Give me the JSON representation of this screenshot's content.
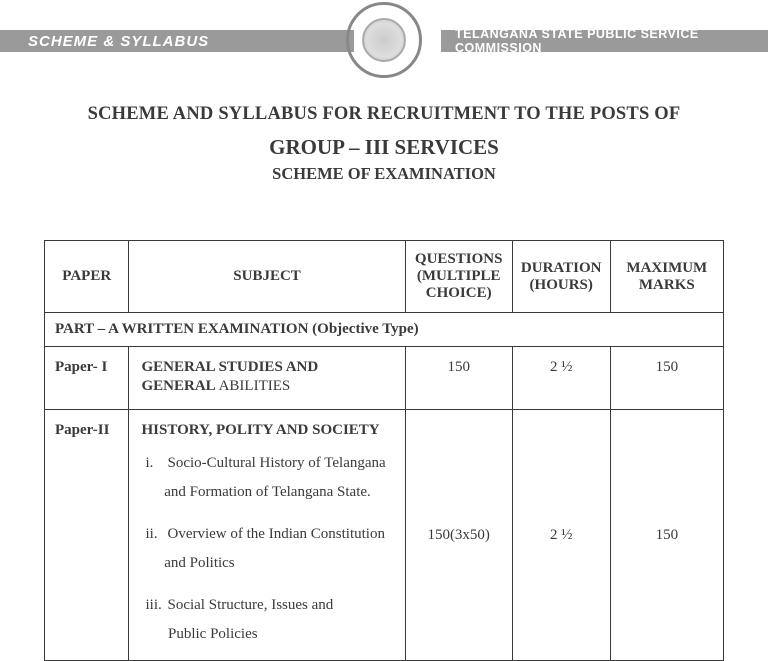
{
  "header": {
    "left_label": "SCHEME & SYLLABUS",
    "right_label": "TELANGANA STATE PUBLIC SERVICE COMMISSION"
  },
  "titles": {
    "line1": "SCHEME AND SYLLABUS FOR RECRUITMENT TO THE POSTS OF",
    "line2": "GROUP – III SERVICES",
    "line3": "SCHEME OF EXAMINATION"
  },
  "table": {
    "columns": {
      "paper": "PAPER",
      "subject": "SUBJECT",
      "questions_l1": "QUESTIONS",
      "questions_l2": "(MULTIPLE",
      "questions_l3": "CHOICE)",
      "duration_l1": "DURATION",
      "duration_l2": "(HOURS)",
      "marks_l1": "MAXIMUM",
      "marks_l2": "MARKS"
    },
    "section_header": "PART – A WRITTEN  EXAMINATION (Objective Type)",
    "rows": [
      {
        "paper": "Paper- I",
        "subject_bold_l1": "GENERAL STUDIES AND",
        "subject_bold_l2_strong": "GENERAL",
        "subject_bold_l2_rest": "  ABILITIES",
        "questions": "150",
        "duration": "2 ½",
        "marks": "150"
      },
      {
        "paper": "Paper-II",
        "subject_title": "HISTORY, POLITY  AND SOCIETY",
        "items": [
          {
            "num": "i.",
            "text_l1": "Socio-Cultural History of Telangana",
            "text_l2": "and Formation of Telangana State."
          },
          {
            "num": "ii.",
            "text_l1": "Overview of the Indian Constitution",
            "text_l2": "and Politics"
          },
          {
            "num": "iii.",
            "text_l1": "Social Structure, Issues and",
            "text_l2": "Public Policies"
          }
        ],
        "questions": "150(3x50)",
        "duration": "2 ½",
        "marks": "150"
      }
    ]
  },
  "colors": {
    "bar_bg": "#9a9a9a",
    "bar_text": "#ffffff",
    "text": "#3a3a3a",
    "border": "#3a3a3a",
    "background": "#ffffff"
  }
}
